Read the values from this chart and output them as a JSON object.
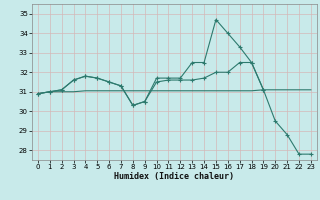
{
  "xlabel": "Humidex (Indice chaleur)",
  "bg_color": "#c8eaea",
  "line_color": "#2d7a6e",
  "grid_color_major": "#d4b8b8",
  "grid_color_minor": "#e0cccc",
  "xlim": [
    -0.5,
    23.5
  ],
  "ylim": [
    27.5,
    35.5
  ],
  "yticks": [
    28,
    29,
    30,
    31,
    32,
    33,
    34,
    35
  ],
  "xticks": [
    0,
    1,
    2,
    3,
    4,
    5,
    6,
    7,
    8,
    9,
    10,
    11,
    12,
    13,
    14,
    15,
    16,
    17,
    18,
    19,
    20,
    21,
    22,
    23
  ],
  "series_flat": {
    "x": [
      0,
      1,
      2,
      3,
      4,
      5,
      6,
      7,
      8,
      9,
      10,
      11,
      12,
      13,
      14,
      15,
      16,
      17,
      18,
      19,
      20,
      21,
      22,
      23
    ],
    "y": [
      30.9,
      31.0,
      31.0,
      31.0,
      31.05,
      31.05,
      31.05,
      31.05,
      31.05,
      31.05,
      31.05,
      31.05,
      31.05,
      31.05,
      31.05,
      31.05,
      31.05,
      31.05,
      31.05,
      31.1,
      31.1,
      31.1,
      31.1,
      31.1
    ]
  },
  "series_mid": {
    "x": [
      0,
      1,
      2,
      3,
      4,
      5,
      6,
      7,
      8,
      9,
      10,
      11,
      12,
      13,
      14,
      15,
      16,
      17,
      18,
      19
    ],
    "y": [
      30.9,
      31.0,
      31.1,
      31.6,
      31.8,
      31.7,
      31.5,
      31.3,
      30.3,
      30.5,
      31.5,
      31.6,
      31.6,
      31.6,
      31.7,
      32.0,
      32.0,
      32.5,
      32.5,
      31.1
    ]
  },
  "series_main": [
    {
      "x": [
        0,
        1,
        2,
        3,
        4,
        5,
        6,
        7,
        8,
        9,
        10,
        11,
        12,
        13,
        14,
        15,
        16,
        17,
        18,
        19,
        20,
        21,
        22,
        23
      ],
      "y": [
        30.9,
        31.0,
        31.1,
        31.6,
        31.8,
        31.7,
        31.5,
        31.3,
        30.3,
        30.5,
        31.7,
        31.7,
        31.7,
        32.5,
        32.5,
        34.7,
        34.0,
        33.3,
        32.5,
        31.1,
        29.5,
        28.8,
        27.8,
        27.8
      ]
    }
  ]
}
